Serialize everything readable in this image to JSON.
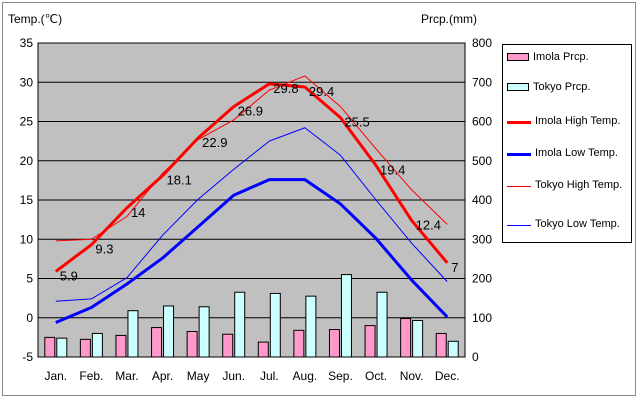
{
  "chart_data": {
    "type": "bar+line",
    "title": "",
    "left_axis_label": "Temp.(℃)",
    "right_axis_label": "Prcp.(mm)",
    "categories": [
      "Jan.",
      "Feb.",
      "Mar.",
      "Apr.",
      "May",
      "Jun.",
      "Jul.",
      "Aug.",
      "Sep.",
      "Oct.",
      "Nov.",
      "Dec."
    ],
    "temp_ylim": [
      -5,
      35
    ],
    "temp_ticks": [
      35,
      30,
      25,
      20,
      15,
      10,
      5,
      0,
      -5
    ],
    "prcp_ylim": [
      0,
      800
    ],
    "prcp_ticks": [
      800,
      700,
      600,
      500,
      400,
      300,
      200,
      100,
      0
    ],
    "grid": true,
    "series": [
      {
        "name": "Imola Prcp.",
        "kind": "bar",
        "axis": "prcp",
        "color": "#ff99cc",
        "values": [
          50,
          45,
          55,
          75,
          65,
          58,
          38,
          68,
          70,
          80,
          98,
          60
        ]
      },
      {
        "name": "Tokyo Prcp.",
        "kind": "bar",
        "axis": "prcp",
        "color": "#ccffff",
        "values": [
          48,
          60,
          118,
          130,
          128,
          165,
          162,
          155,
          210,
          165,
          93,
          40
        ]
      },
      {
        "name": "Imola High Temp.",
        "kind": "line",
        "axis": "temp",
        "color": "#ff0000",
        "width": 3,
        "values": [
          5.9,
          9.3,
          14,
          18.1,
          22.9,
          26.9,
          29.8,
          29.4,
          25.5,
          19.4,
          12.4,
          7
        ]
      },
      {
        "name": "Imola Low Temp.",
        "kind": "line",
        "axis": "temp",
        "color": "#0000ff",
        "width": 3,
        "values": [
          -0.6,
          1.3,
          4.3,
          7.6,
          11.6,
          15.6,
          17.6,
          17.6,
          14.5,
          10.1,
          4.8,
          0.1
        ]
      },
      {
        "name": "Tokyo High Temp.",
        "kind": "line",
        "axis": "temp",
        "color": "#ff0000",
        "width": 1,
        "values": [
          9.8,
          10.0,
          12.9,
          18.4,
          22.7,
          25.2,
          29.0,
          30.8,
          26.9,
          21.5,
          16.3,
          11.9
        ]
      },
      {
        "name": "Tokyo Low Temp.",
        "kind": "line",
        "axis": "temp",
        "color": "#0000ff",
        "width": 1,
        "values": [
          2.1,
          2.4,
          5.1,
          10.5,
          15.1,
          18.9,
          22.5,
          24.2,
          20.7,
          15.0,
          9.5,
          4.6
        ]
      }
    ],
    "data_labels": [
      "5.9",
      "9.3",
      "14",
      "18.1",
      "22.9",
      "26.9",
      "29.8",
      "29.4",
      "25.5",
      "19.4",
      "12.4",
      "7"
    ],
    "legend_position": "right"
  }
}
